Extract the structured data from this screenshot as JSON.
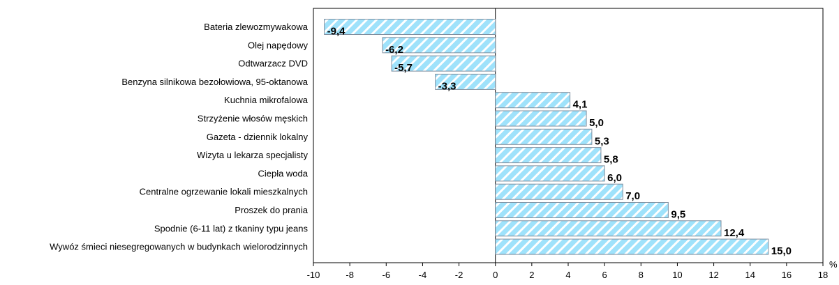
{
  "chart_data": {
    "type": "bar",
    "orientation": "horizontal",
    "categories": [
      "Bateria zlewozmywakowa",
      "Olej napędowy",
      "Odtwarzacz DVD",
      "Benzyna silnikowa bezołowiowa, 95-oktanowa",
      "Kuchnia mikrofalowa",
      "Strzyżenie włosów męskich",
      "Gazeta - dziennik lokalny",
      "Wizyta u lekarza specjalisty",
      "Ciepła woda",
      "Centralne ogrzewanie lokali mieszkalnych",
      "Proszek do prania",
      "Spodnie (6-11 lat) z tkaniny typu jeans",
      "Wywóz śmieci niesegregowanych w budynkach wielorodzinnych"
    ],
    "values": [
      -9.4,
      -6.2,
      -5.7,
      -3.3,
      4.1,
      5.0,
      5.3,
      5.8,
      6.0,
      7.0,
      9.5,
      12.4,
      15.0
    ],
    "value_labels": [
      "-9,4",
      "-6,2",
      "-5,7",
      "-3,3",
      "4,1",
      "5,0",
      "5,3",
      "5,8",
      "6,0",
      "7,0",
      "9,5",
      "12,4",
      "15,0"
    ],
    "x_ticks": [
      -10,
      -8,
      -6,
      -4,
      -2,
      0,
      2,
      4,
      6,
      8,
      10,
      12,
      14,
      16,
      18
    ],
    "x_tick_labels": [
      "-10",
      "-8",
      "-6",
      "-4",
      "-2",
      "0",
      "2",
      "4",
      "6",
      "8",
      "10",
      "12",
      "14",
      "16",
      "18"
    ],
    "xlim": [
      -10,
      18
    ],
    "xlabel": "%",
    "ylabel": "",
    "title": "",
    "grid": false,
    "bar_fill": "#9fe2fb",
    "bar_hatch": "#ffffff",
    "bar_stroke": "#7f8f9f",
    "axis_color": "#000000",
    "zero_line_color": "#000000"
  }
}
